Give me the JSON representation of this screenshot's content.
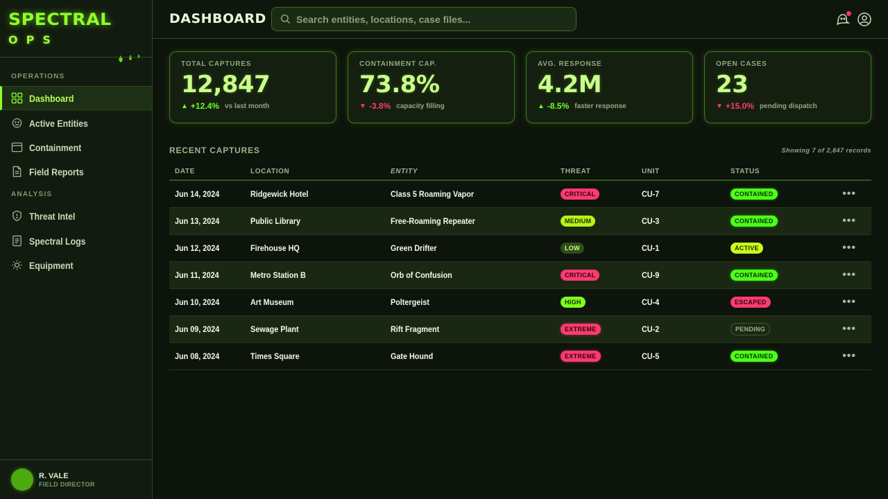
{
  "brand": {
    "title": "SPECTRAL",
    "subtitle": "OPS"
  },
  "sidebar": {
    "sections": [
      {
        "label": "OPERATIONS"
      },
      {
        "label": "ANALYSIS"
      }
    ],
    "items": [
      {
        "label": "Dashboard",
        "icon": "grid-icon"
      },
      {
        "label": "Active Entities",
        "icon": "face-icon"
      },
      {
        "label": "Containment",
        "icon": "window-icon"
      },
      {
        "label": "Field Reports",
        "icon": "document-icon"
      },
      {
        "label": "Threat Intel",
        "icon": "shield-icon"
      },
      {
        "label": "Spectral Logs",
        "icon": "log-icon"
      },
      {
        "label": "Equipment",
        "icon": "sun-gear-icon"
      }
    ],
    "user": {
      "name": "R. VALE",
      "role": "FIELD DIRECTOR"
    }
  },
  "header": {
    "title": "DASHBOARD",
    "search_placeholder": "Search entities, locations, case files..."
  },
  "stats": [
    {
      "label": "TOTAL CAPTURES",
      "value": "12,847",
      "delta": "+12.4%",
      "direction": "up",
      "note": "vs last month"
    },
    {
      "label": "CONTAINMENT CAP.",
      "value": "73.8%",
      "delta": "-3.8%",
      "direction": "down",
      "note": "capacity filling"
    },
    {
      "label": "AVG. RESPONSE",
      "value": "4.2M",
      "delta": "-8.5%",
      "direction": "up",
      "note": "faster response"
    },
    {
      "label": "OPEN CASES",
      "value": "23",
      "delta": "+15.0%",
      "direction": "down",
      "note": "pending dispatch"
    }
  ],
  "captures": {
    "title": "RECENT CAPTURES",
    "records_note": "Showing 7 of 2,847 records",
    "columns": {
      "date": "DATE",
      "location": "LOCATION",
      "entity": "ENTITY",
      "threat": "THREAT",
      "unit": "UNIT",
      "status": "STATUS"
    },
    "rows": [
      {
        "date": "Jun 14, 2024",
        "location": "Ridgewick Hotel",
        "entity": "Class 5 Roaming Vapor",
        "threat": "CRITICAL",
        "unit": "CU-7",
        "status": "CONTAINED"
      },
      {
        "date": "Jun 13, 2024",
        "location": "Public Library",
        "entity": "Free-Roaming Repeater",
        "threat": "MEDIUM",
        "unit": "CU-3",
        "status": "CONTAINED"
      },
      {
        "date": "Jun 12, 2024",
        "location": "Firehouse HQ",
        "entity": "Green Drifter",
        "threat": "LOW",
        "unit": "CU-1",
        "status": "ACTIVE"
      },
      {
        "date": "Jun 11, 2024",
        "location": "Metro Station B",
        "entity": "Orb of Confusion",
        "threat": "CRITICAL",
        "unit": "CU-9",
        "status": "CONTAINED"
      },
      {
        "date": "Jun 10, 2024",
        "location": "Art Museum",
        "entity": "Poltergeist",
        "threat": "HIGH",
        "unit": "CU-4",
        "status": "ESCAPED"
      },
      {
        "date": "Jun 09, 2024",
        "location": "Sewage Plant",
        "entity": "Rift Fragment",
        "threat": "EXTREME",
        "unit": "CU-2",
        "status": "PENDING"
      },
      {
        "date": "Jun 08, 2024",
        "location": "Times Square",
        "entity": "Gate Hound",
        "threat": "EXTREME",
        "unit": "CU-5",
        "status": "CONTAINED"
      }
    ]
  },
  "colors": {
    "accent": "#8dff2a",
    "danger": "#ff3a70",
    "background": "#0d140b"
  }
}
